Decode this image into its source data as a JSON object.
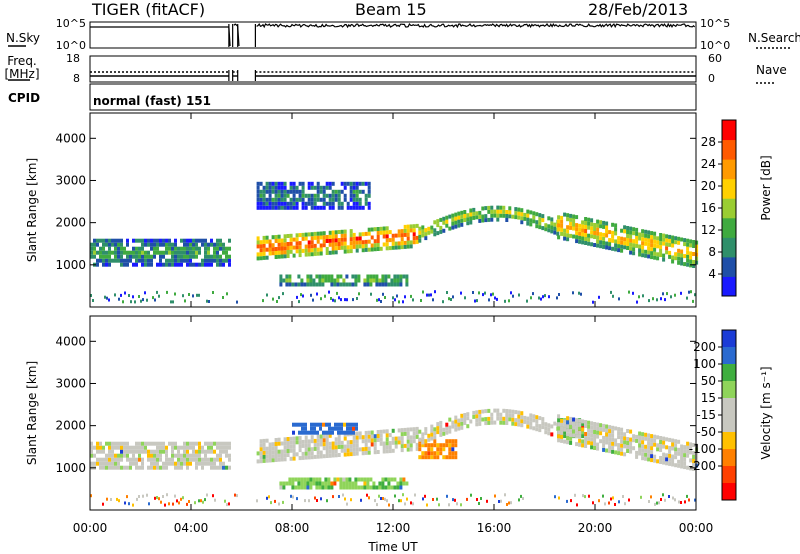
{
  "header": {
    "station": "TIGER (fitACF)",
    "beam": "Beam 15",
    "date": "28/Feb/2013"
  },
  "strip_labels": {
    "nsky": "N.Sky",
    "nsearch": "N.Search",
    "freq_top": "Freq.",
    "freq_unit": "[MHz]",
    "nave": "Nave",
    "cpid": "CPID",
    "cpid_value": "normal (fast) 151",
    "noise_ticks_left": [
      "10^5",
      "10^0"
    ],
    "noise_ticks_right": [
      "10^5",
      "10^0"
    ],
    "freq_ticks": [
      "18",
      "8"
    ],
    "nave_ticks": [
      "60",
      "0"
    ]
  },
  "colors": {
    "frame": "#000000",
    "scatter_bg": "#ffffff",
    "power_scale": [
      "#1a1aff",
      "#1f4fa8",
      "#2f8f6a",
      "#3faa3f",
      "#9acd32",
      "#ffd000",
      "#ff9a00",
      "#ff5a00",
      "#ff0000"
    ],
    "velocity_scale": [
      "#1b3cd6",
      "#2a6ad0",
      "#3fae3f",
      "#8fd45a",
      "#c8c8c0",
      "#c8c8c0",
      "#ffc000",
      "#ff8000",
      "#ff4000",
      "#ff0000"
    ]
  },
  "chart_data": [
    {
      "type": "heatmap",
      "title": "",
      "parameter": "Power",
      "xlabel": "",
      "ylabel": "Slant Range [km]",
      "x_ticks": [
        "00:00",
        "04:00",
        "08:00",
        "12:00",
        "16:00",
        "20:00",
        "00:00"
      ],
      "x_range_hours": [
        0,
        24
      ],
      "y_ticks": [
        1000,
        2000,
        3000,
        4000
      ],
      "ylim": [
        0,
        4600
      ],
      "colorbar_label": "Power [dB]",
      "colorbar_ticks": [
        4,
        8,
        12,
        16,
        20,
        24,
        28
      ],
      "colorbar_range": [
        0,
        32
      ],
      "data_gaps_hours": [
        [
          5.5,
          5.65
        ],
        [
          5.85,
          6.55
        ]
      ],
      "bands": [
        {
          "name": "evening-band",
          "t0": 0,
          "t1": 5.5,
          "r_center": 1350,
          "r_halfwidth": 300,
          "level": 10
        },
        {
          "name": "main-band",
          "t0": 6.6,
          "t1": 13.0,
          "r_center": 1550,
          "r_halfwidth": 250,
          "level": 26
        },
        {
          "name": "main-band-rise",
          "t0": 13.0,
          "t1": 18.5,
          "r_center": 2150,
          "r_halfwidth": 180,
          "level": 16
        },
        {
          "name": "dawn-band",
          "t0": 18.5,
          "t1": 24,
          "r_center": 1600,
          "r_halfwidth": 300,
          "level": 20
        },
        {
          "name": "lower-echoes",
          "t0": 7.5,
          "t1": 12.5,
          "r_center": 700,
          "r_halfwidth": 120,
          "level": 14
        },
        {
          "name": "upper-echoes",
          "t0": 6.6,
          "t1": 11.0,
          "r_center": 2700,
          "r_halfwidth": 300,
          "level": 8
        }
      ]
    },
    {
      "type": "heatmap",
      "title": "",
      "parameter": "Velocity",
      "xlabel": "Time UT",
      "ylabel": "Slant Range [km]",
      "x_ticks": [
        "00:00",
        "04:00",
        "08:00",
        "12:00",
        "16:00",
        "20:00",
        "00:00"
      ],
      "x_range_hours": [
        0,
        24
      ],
      "y_ticks": [
        1000,
        2000,
        3000,
        4000
      ],
      "ylim": [
        0,
        4600
      ],
      "colorbar_label": "Velocity [m s⁻¹]",
      "colorbar_ticks": [
        200,
        100,
        50,
        15,
        -15,
        -50,
        -100,
        -200
      ],
      "data_gaps_hours": [
        [
          5.5,
          5.65
        ],
        [
          5.85,
          6.55
        ]
      ],
      "bands": [
        {
          "name": "evening-band",
          "t0": 0,
          "t1": 5.5,
          "r_center": 1350,
          "r_halfwidth": 300,
          "velocity": 0
        },
        {
          "name": "main-band",
          "t0": 6.6,
          "t1": 13.0,
          "r_center": 1550,
          "r_halfwidth": 250,
          "velocity": 0
        },
        {
          "name": "blue-patch",
          "t0": 8.0,
          "t1": 10.5,
          "r_center": 2000,
          "r_halfwidth": 120,
          "velocity": 180
        },
        {
          "name": "orange-patch",
          "t0": 13.0,
          "t1": 14.5,
          "r_center": 1500,
          "r_halfwidth": 200,
          "velocity": -60
        },
        {
          "name": "main-band-rise",
          "t0": 13.0,
          "t1": 18.5,
          "r_center": 2150,
          "r_halfwidth": 180,
          "velocity": 0
        },
        {
          "name": "green-streak",
          "t0": 18.5,
          "t1": 19.5,
          "r_center": 2000,
          "r_halfwidth": 200,
          "velocity": 60
        },
        {
          "name": "dawn-band",
          "t0": 18.5,
          "t1": 24,
          "r_center": 1600,
          "r_halfwidth": 300,
          "velocity": 0
        },
        {
          "name": "lower-echoes",
          "t0": 7.5,
          "t1": 12.5,
          "r_center": 700,
          "r_halfwidth": 120,
          "velocity": 40
        }
      ]
    }
  ]
}
